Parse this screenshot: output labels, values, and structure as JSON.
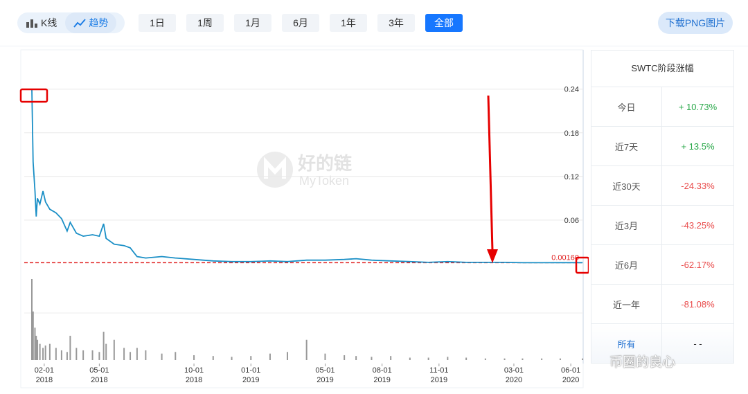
{
  "toolbar": {
    "modes": [
      "K线",
      "趋势"
    ],
    "active_mode": 1,
    "ranges": [
      "1日",
      "1周",
      "1月",
      "6月",
      "1年",
      "3年",
      "全部"
    ],
    "active_range": 6,
    "download": "下载PNG图片"
  },
  "chart_data": {
    "type": "line",
    "x": [
      "2018-01-12",
      "2018-01-14",
      "2018-01-17",
      "2018-01-19",
      "2018-01-21",
      "2018-01-25",
      "2018-01-30",
      "2018-02-03",
      "2018-02-10",
      "2018-02-20",
      "2018-03-01",
      "2018-03-10",
      "2018-03-15",
      "2018-03-25",
      "2018-04-05",
      "2018-04-20",
      "2018-05-01",
      "2018-05-08",
      "2018-05-12",
      "2018-05-25",
      "2018-06-10",
      "2018-06-20",
      "2018-07-01",
      "2018-07-15",
      "2018-08-10",
      "2018-09-01",
      "2018-10-01",
      "2018-11-01",
      "2018-12-01",
      "2019-01-01",
      "2019-02-01",
      "2019-03-01",
      "2019-04-01",
      "2019-05-01",
      "2019-06-01",
      "2019-06-20",
      "2019-07-15",
      "2019-08-15",
      "2019-09-15",
      "2019-10-15",
      "2019-11-15",
      "2019-12-15",
      "2020-01-15",
      "2020-02-15",
      "2020-03-15",
      "2020-04-15",
      "2020-05-15",
      "2020-06-20"
    ],
    "series": [
      {
        "color": "#1a8fc6",
        "values": [
          0.24,
          0.14,
          0.1,
          0.065,
          0.09,
          0.082,
          0.1,
          0.085,
          0.075,
          0.07,
          0.062,
          0.045,
          0.057,
          0.042,
          0.038,
          0.04,
          0.038,
          0.055,
          0.035,
          0.027,
          0.025,
          0.022,
          0.01,
          0.008,
          0.01,
          0.008,
          0.006,
          0.004,
          0.003,
          0.003,
          0.004,
          0.003,
          0.005,
          0.005,
          0.006,
          0.007,
          0.005,
          0.004,
          0.003,
          0.002,
          0.003,
          0.002,
          0.002,
          0.002,
          0.0015,
          0.0015,
          0.0016,
          0.0016
        ]
      }
    ],
    "volume": {
      "color": "#999999",
      "values": [
        100,
        60,
        40,
        30,
        25,
        20,
        15,
        18,
        20,
        15,
        12,
        10,
        30,
        15,
        12,
        12,
        10,
        35,
        20,
        25,
        15,
        10,
        15,
        12,
        8,
        10,
        6,
        5,
        4,
        5,
        8,
        10,
        25,
        8,
        6,
        5,
        4,
        5,
        3,
        3,
        4,
        3,
        2,
        2,
        2,
        2,
        2,
        2
      ]
    },
    "volume_ylim": [
      0,
      100
    ],
    "xlim": [
      "2018-01-12",
      "2020-06-21"
    ],
    "xticks": [
      {
        "value": "2018-02-01",
        "label": "02-01\n2018"
      },
      {
        "value": "2018-05-01",
        "label": "05-01\n2018"
      },
      {
        "value": "2018-10-01",
        "label": "10-01\n2018"
      },
      {
        "value": "2019-01-01",
        "label": "01-01\n2019"
      },
      {
        "value": "2019-05-01",
        "label": "05-01\n2019"
      },
      {
        "value": "2019-08-01",
        "label": "08-01\n2019"
      },
      {
        "value": "2019-11-01",
        "label": "11-01\n2019"
      },
      {
        "value": "2020-03-01",
        "label": "03-01\n2020"
      },
      {
        "value": "2020-06-01",
        "label": "06-01\n2020"
      }
    ],
    "ylim": [
      0,
      0.293
    ],
    "yticks": [
      0.06,
      0.12,
      0.18,
      0.24
    ],
    "grid": true,
    "price_line": {
      "value": 0.0016,
      "label": "0.00160",
      "color": "#e02020"
    },
    "watermark": [
      "好的链",
      "MyToken"
    ]
  },
  "side_table": {
    "title": "SWTC阶段涨幅",
    "rows": [
      [
        "今日",
        "+ 10.73%"
      ],
      [
        "近7天",
        "+ 13.5%"
      ],
      [
        "近30天",
        "-24.33%"
      ],
      [
        "近3月",
        "-43.25%"
      ],
      [
        "近6月",
        "-62.17%"
      ],
      [
        "近一年",
        "-81.08%"
      ],
      [
        "所有",
        "- -"
      ]
    ]
  },
  "footer_watermark": "币圈的良心"
}
